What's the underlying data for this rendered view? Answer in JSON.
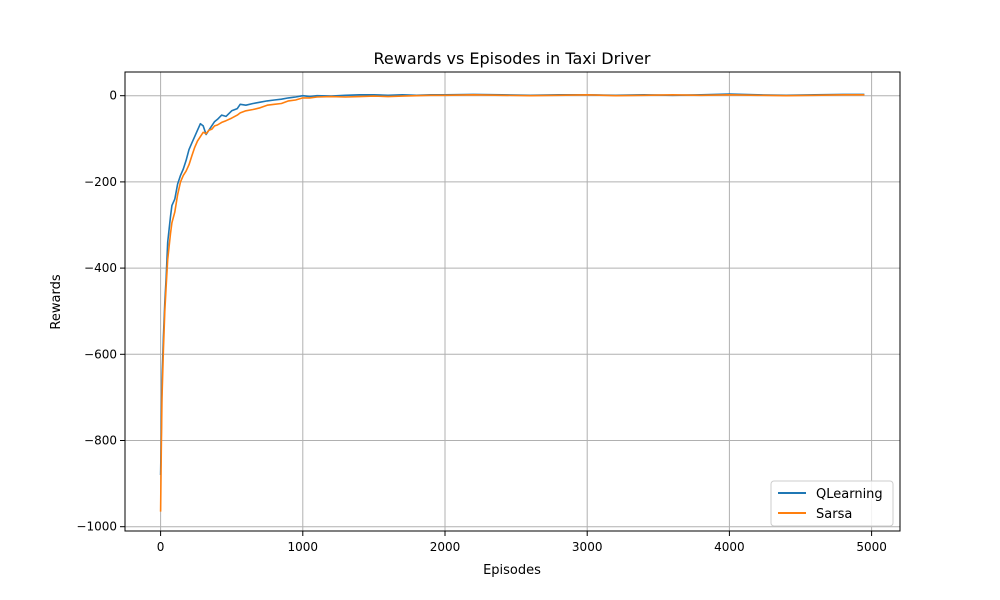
{
  "chart_data": {
    "type": "line",
    "title": "Rewards vs Episodes in Taxi Driver",
    "xlabel": "Episodes",
    "ylabel": "Rewards",
    "xlim": [
      -250,
      5200
    ],
    "ylim": [
      -1010,
      55
    ],
    "xticks": [
      0,
      1000,
      2000,
      3000,
      4000,
      5000
    ],
    "xtick_labels": [
      "0",
      "1000",
      "2000",
      "3000",
      "4000",
      "5000"
    ],
    "yticks": [
      0,
      -200,
      -400,
      -600,
      -800,
      -1000
    ],
    "ytick_labels": [
      "0",
      "−200",
      "−400",
      "−600",
      "−800",
      "−1000"
    ],
    "grid": true,
    "legend_position": "lower-right",
    "series": [
      {
        "name": "QLearning",
        "color": "#1f77b4",
        "x": [
          0,
          5,
          10,
          20,
          30,
          40,
          50,
          60,
          70,
          80,
          100,
          120,
          140,
          160,
          180,
          200,
          220,
          240,
          260,
          280,
          300,
          320,
          340,
          360,
          380,
          400,
          430,
          460,
          500,
          540,
          560,
          600,
          650,
          700,
          750,
          800,
          850,
          900,
          950,
          1000,
          1050,
          1100,
          1200,
          1300,
          1400,
          1500,
          1600,
          1700,
          1800,
          1900,
          2000,
          2200,
          2400,
          2600,
          2800,
          3000,
          3200,
          3400,
          3600,
          3800,
          4000,
          4200,
          4400,
          4600,
          4800,
          4950
        ],
        "y": [
          -880,
          -780,
          -660,
          -560,
          -480,
          -420,
          -340,
          -310,
          -280,
          -255,
          -240,
          -205,
          -185,
          -170,
          -150,
          -125,
          -110,
          -95,
          -80,
          -65,
          -70,
          -90,
          -80,
          -70,
          -60,
          -55,
          -45,
          -48,
          -35,
          -30,
          -20,
          -22,
          -18,
          -15,
          -12,
          -10,
          -8,
          -5,
          -3,
          0,
          -2,
          0,
          -1,
          1,
          2,
          2,
          1,
          2,
          1,
          2,
          2,
          3,
          2,
          1,
          2,
          2,
          1,
          2,
          1,
          2,
          4,
          2,
          1,
          2,
          3,
          3
        ]
      },
      {
        "name": "Sarsa",
        "color": "#ff7f0e",
        "x": [
          0,
          5,
          10,
          20,
          30,
          40,
          50,
          60,
          70,
          80,
          100,
          120,
          140,
          160,
          180,
          200,
          220,
          240,
          260,
          280,
          300,
          320,
          340,
          360,
          380,
          400,
          430,
          460,
          500,
          540,
          560,
          600,
          650,
          700,
          750,
          800,
          850,
          900,
          950,
          1000,
          1050,
          1100,
          1200,
          1300,
          1400,
          1500,
          1600,
          1700,
          1800,
          1900,
          2000,
          2200,
          2400,
          2600,
          2800,
          3000,
          3200,
          3400,
          3600,
          3800,
          4000,
          4200,
          4400,
          4600,
          4800,
          4950
        ],
        "y": [
          -965,
          -820,
          -700,
          -590,
          -500,
          -440,
          -380,
          -350,
          -320,
          -295,
          -270,
          -230,
          -200,
          -185,
          -175,
          -160,
          -140,
          -120,
          -105,
          -95,
          -85,
          -88,
          -80,
          -78,
          -70,
          -68,
          -62,
          -58,
          -52,
          -45,
          -40,
          -35,
          -32,
          -28,
          -22,
          -20,
          -18,
          -12,
          -10,
          -5,
          -5,
          -3,
          -2,
          -3,
          -2,
          -1,
          -2,
          -1,
          0,
          1,
          1,
          2,
          1,
          0,
          1,
          2,
          0,
          1,
          2,
          1,
          2,
          1,
          0,
          1,
          2,
          2
        ]
      }
    ]
  }
}
